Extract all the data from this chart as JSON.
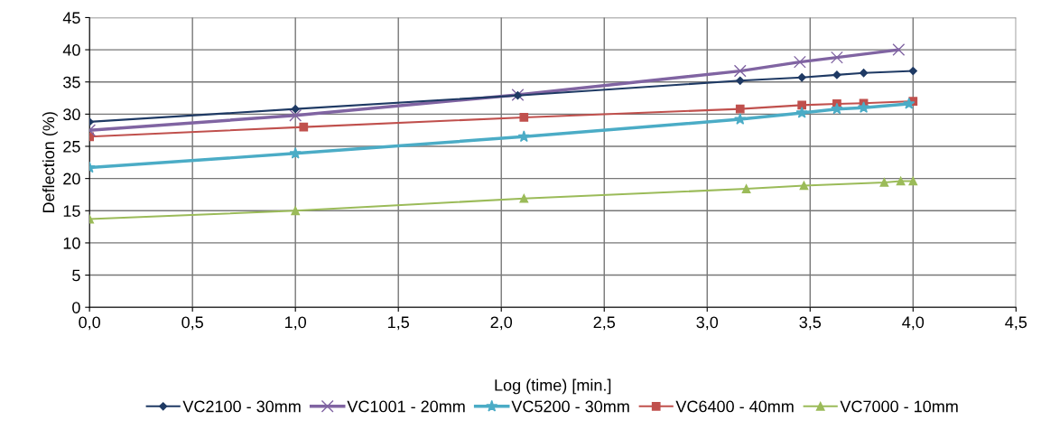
{
  "chart_data": {
    "type": "line",
    "xlabel": "Log (time) [min.]",
    "ylabel": "Deflection (%)",
    "xlim": [
      0,
      4.5
    ],
    "ylim": [
      0,
      45
    ],
    "xticks": [
      {
        "value": 0,
        "label": "0,0"
      },
      {
        "value": 0.5,
        "label": "0,5"
      },
      {
        "value": 1,
        "label": "1,0"
      },
      {
        "value": 1.5,
        "label": "1,5"
      },
      {
        "value": 2,
        "label": "2,0"
      },
      {
        "value": 2.5,
        "label": "2,5"
      },
      {
        "value": 3,
        "label": "3,0"
      },
      {
        "value": 3.5,
        "label": "3,5"
      },
      {
        "value": 4,
        "label": "4,0"
      },
      {
        "value": 4.5,
        "label": "4,5"
      }
    ],
    "yticks": [
      0,
      5,
      10,
      15,
      20,
      25,
      30,
      35,
      40,
      45
    ],
    "grid": true,
    "legend": "bottom",
    "line_style": "solid",
    "series": [
      {
        "name": "VC2100 - 30mm",
        "color": "#1f3a64",
        "marker": "diamond",
        "x": [
          0,
          1.0,
          2.08,
          3.16,
          3.46,
          3.63,
          3.76,
          4.0
        ],
        "values": [
          28.8,
          30.8,
          32.9,
          35.2,
          35.7,
          36.1,
          36.4,
          36.7
        ]
      },
      {
        "name": "VC1001 - 20mm",
        "color": "#8064a2",
        "marker": "cross",
        "x": [
          0,
          1.0,
          2.08,
          3.16,
          3.45,
          3.63,
          3.93
        ],
        "values": [
          27.5,
          29.8,
          33.0,
          36.7,
          38.1,
          38.8,
          40.0
        ]
      },
      {
        "name": "VC5200 - 30mm",
        "color": "#4bacc6",
        "marker": "star",
        "x": [
          0,
          1.0,
          2.11,
          3.16,
          3.46,
          3.63,
          3.76,
          3.98
        ],
        "values": [
          21.7,
          23.9,
          26.5,
          29.2,
          30.2,
          30.8,
          31.0,
          31.6
        ]
      },
      {
        "name": "VC6400 - 40mm",
        "color": "#c0504d",
        "marker": "square",
        "x": [
          0,
          1.04,
          2.11,
          3.16,
          3.46,
          3.63,
          3.76,
          4.0
        ],
        "values": [
          26.5,
          28.0,
          29.5,
          30.8,
          31.4,
          31.6,
          31.7,
          32.0
        ]
      },
      {
        "name": "VC7000 - 10mm",
        "color": "#9bbb59",
        "marker": "triangle",
        "x": [
          0,
          1.0,
          2.11,
          3.19,
          3.47,
          3.86,
          3.94,
          4.0
        ],
        "values": [
          13.7,
          15.0,
          16.9,
          18.4,
          18.9,
          19.4,
          19.6,
          19.6
        ]
      }
    ]
  }
}
